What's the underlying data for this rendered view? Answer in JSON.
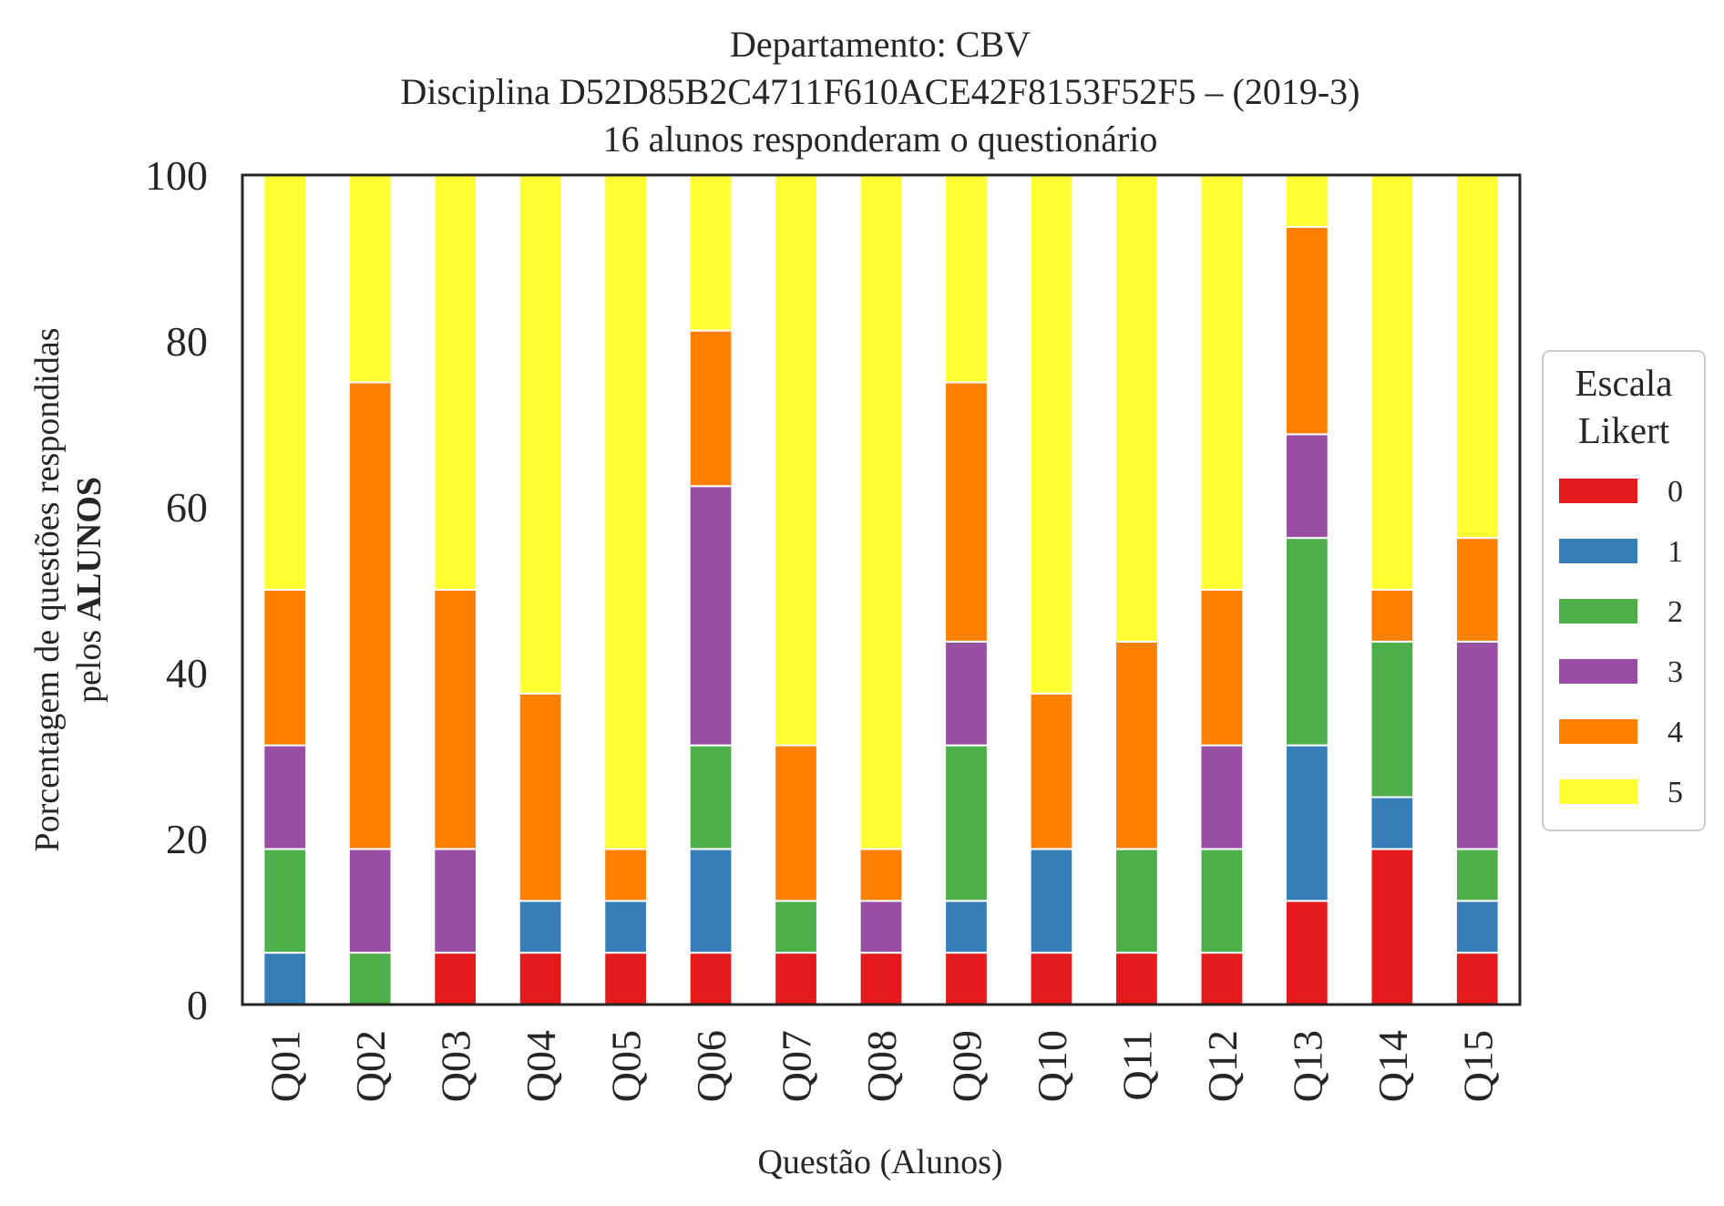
{
  "chart_data": {
    "type": "bar",
    "stacked": true,
    "title": [
      "Departamento: CBV",
      "Disciplina D52D85B2C4711F610ACE42F8153F52F5 – (2019-3)",
      "16 alunos responderam o questionário"
    ],
    "xlabel": "Questão (Alunos)",
    "ylabel_line1": "Porcentagem de questões respondidas",
    "ylabel_line2_prefix": "pelos ",
    "ylabel_line2_bold": "ALUNOS",
    "ylim": [
      0,
      100
    ],
    "yticks": [
      "0",
      "20",
      "40",
      "60",
      "80",
      "100"
    ],
    "categories": [
      "Q01",
      "Q02",
      "Q03",
      "Q04",
      "Q05",
      "Q06",
      "Q07",
      "Q08",
      "Q09",
      "Q10",
      "Q11",
      "Q12",
      "Q13",
      "Q14",
      "Q15"
    ],
    "legend": {
      "title_line1": "Escala",
      "title_line2": "Likert",
      "position": "center-right outside"
    },
    "series": [
      {
        "name": "0",
        "color": "#e41a1c",
        "values": [
          0,
          0,
          6.25,
          6.25,
          6.25,
          6.25,
          6.25,
          6.25,
          6.25,
          6.25,
          6.25,
          6.25,
          12.5,
          18.75,
          6.25
        ]
      },
      {
        "name": "1",
        "color": "#377eb8",
        "values": [
          6.25,
          0,
          0,
          6.25,
          6.25,
          12.5,
          0,
          0,
          6.25,
          12.5,
          0,
          0,
          18.75,
          6.25,
          6.25
        ]
      },
      {
        "name": "2",
        "color": "#4daf4a",
        "values": [
          12.5,
          6.25,
          0,
          0,
          0,
          12.5,
          6.25,
          0,
          18.75,
          0,
          12.5,
          12.5,
          25,
          18.75,
          6.25
        ]
      },
      {
        "name": "3",
        "color": "#984ea3",
        "values": [
          12.5,
          12.5,
          12.5,
          0,
          0,
          31.25,
          0,
          6.25,
          12.5,
          0,
          0,
          12.5,
          12.5,
          0,
          25
        ]
      },
      {
        "name": "4",
        "color": "#ff7f00",
        "values": [
          18.75,
          56.25,
          31.25,
          25,
          6.25,
          18.75,
          18.75,
          6.25,
          31.25,
          18.75,
          25,
          18.75,
          25,
          6.25,
          12.5
        ]
      },
      {
        "name": "5",
        "color": "#ffff33",
        "values": [
          50,
          25,
          50,
          62.5,
          81.25,
          18.75,
          68.75,
          81.25,
          25,
          62.5,
          56.25,
          50,
          6.25,
          50,
          43.75
        ]
      }
    ]
  }
}
